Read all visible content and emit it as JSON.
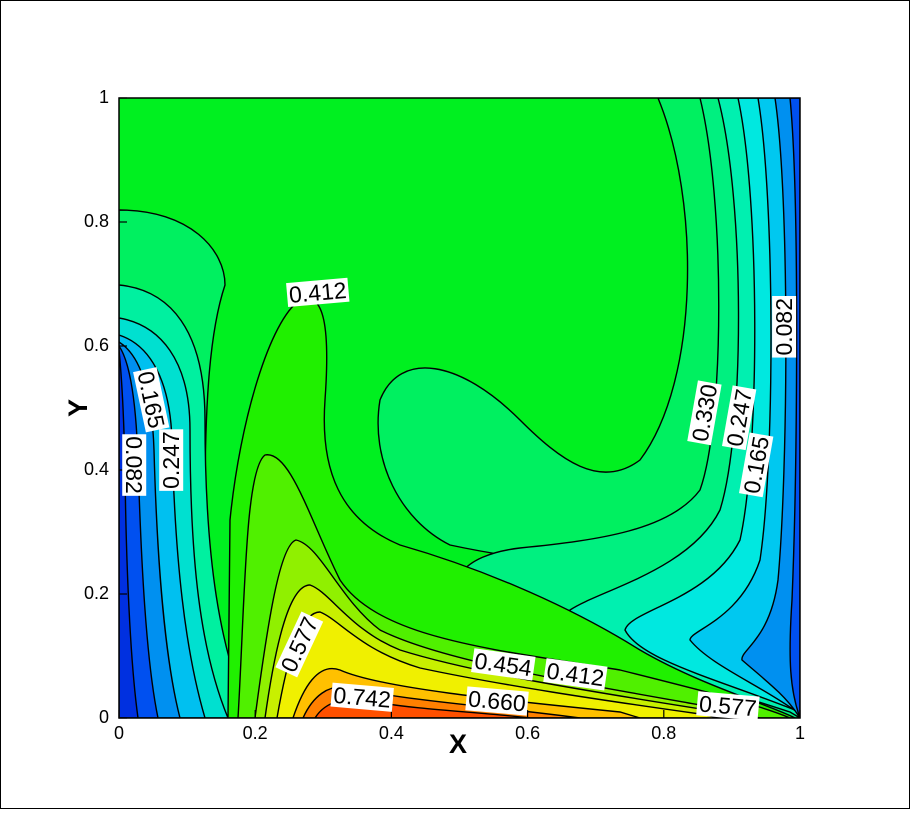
{
  "chart_data": {
    "type": "contour",
    "xlabel": "X",
    "ylabel": "Y",
    "xlim": [
      0,
      1
    ],
    "ylim": [
      0,
      1
    ],
    "xticks": [
      0,
      0.2,
      0.4,
      0.6,
      0.8,
      1
    ],
    "yticks": [
      0,
      0.2,
      0.4,
      0.6,
      0.8,
      1
    ],
    "contour_labels": [
      {
        "x": 0.292,
        "y": 0.685,
        "value": 0.412
      },
      {
        "x": 0.046,
        "y": 0.513,
        "value": 0.165
      },
      {
        "x": 0.021,
        "y": 0.408,
        "value": 0.082
      },
      {
        "x": 0.078,
        "y": 0.416,
        "value": 0.247
      },
      {
        "x": 0.266,
        "y": 0.118,
        "value": 0.577
      },
      {
        "x": 0.357,
        "y": 0.032,
        "value": 0.742
      },
      {
        "x": 0.564,
        "y": 0.085,
        "value": 0.454
      },
      {
        "x": 0.67,
        "y": 0.069,
        "value": 0.412
      },
      {
        "x": 0.555,
        "y": 0.026,
        "value": 0.66,
        "label": "0.660"
      },
      {
        "x": 0.894,
        "y": 0.018,
        "value": 0.577
      },
      {
        "x": 0.861,
        "y": 0.492,
        "value": 0.33,
        "label": "0.330"
      },
      {
        "x": 0.912,
        "y": 0.484,
        "value": 0.247
      },
      {
        "x": 0.937,
        "y": 0.408,
        "value": 0.165
      },
      {
        "x": 0.978,
        "y": 0.631,
        "value": 0.082
      }
    ]
  }
}
